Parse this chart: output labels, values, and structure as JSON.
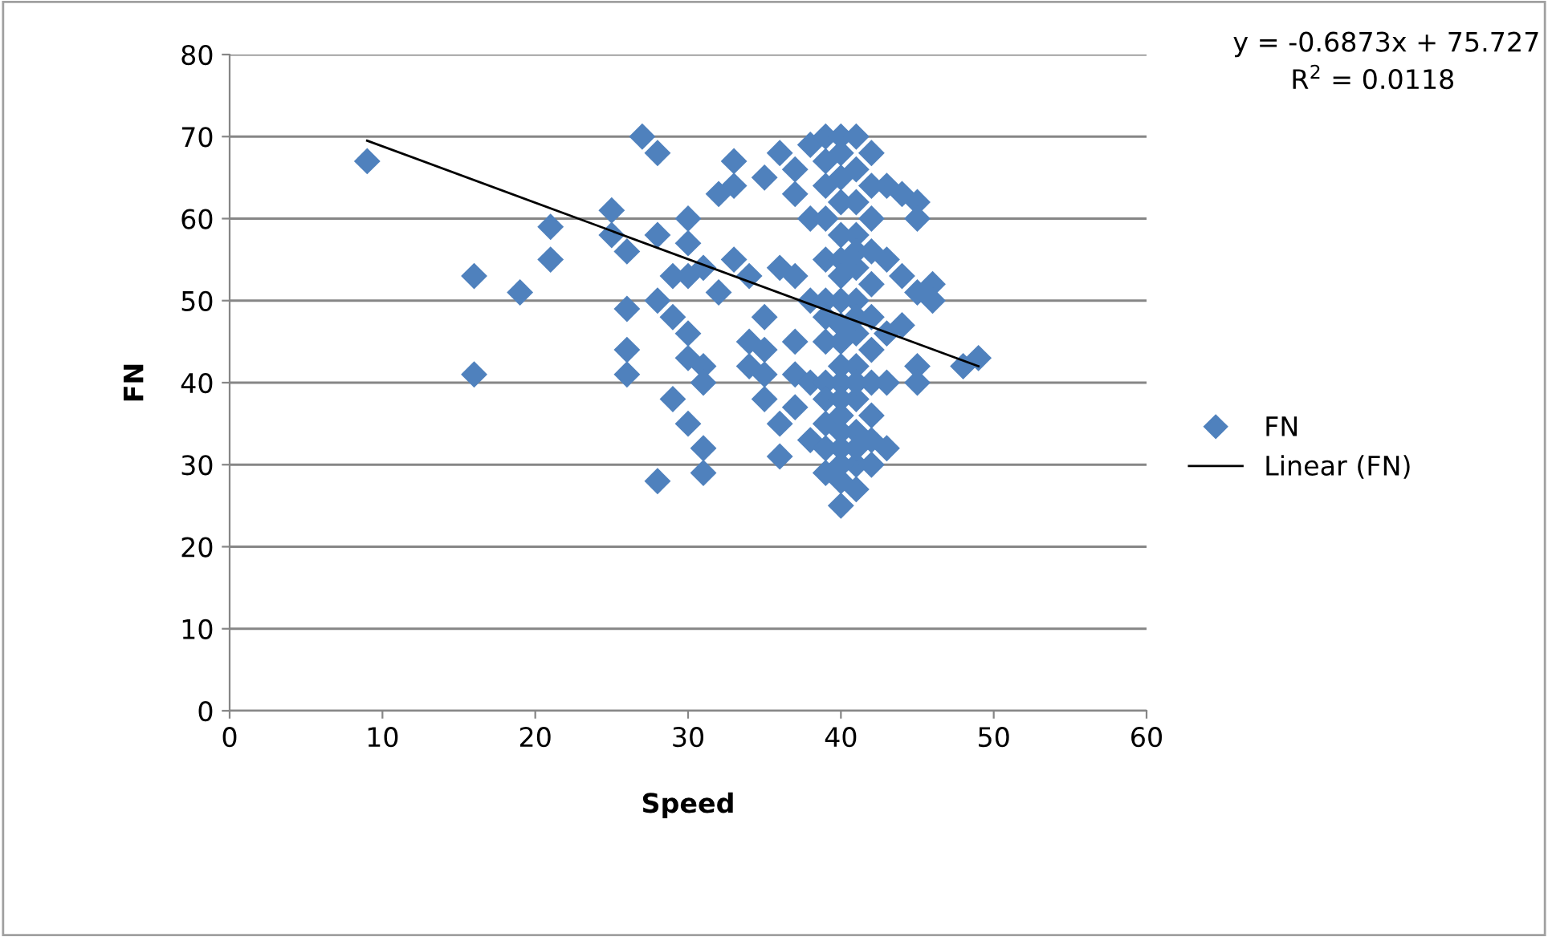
{
  "chart_data": {
    "type": "scatter",
    "xlabel": "Speed",
    "ylabel": "FN",
    "xlim": [
      0,
      60
    ],
    "ylim": [
      0,
      80
    ],
    "xticks": [
      0,
      10,
      20,
      30,
      40,
      50,
      60
    ],
    "yticks": [
      0,
      10,
      20,
      30,
      40,
      50,
      60,
      70,
      80
    ],
    "grid": "y",
    "legend": "right",
    "marker": "diamond",
    "annotations": [
      "y = -0.6873x + 75.727",
      "R$^{2}$ = 0.0118"
    ],
    "series": [
      {
        "name": "FN",
        "color": "#4f81bd",
        "x": [
          9,
          16,
          16,
          19,
          21,
          21,
          25,
          25,
          26,
          26,
          26,
          26,
          27,
          28,
          28,
          28,
          28,
          29,
          29,
          29,
          30,
          30,
          30,
          30,
          30,
          30,
          31,
          31,
          31,
          31,
          31,
          32,
          32,
          33,
          33,
          33,
          34,
          34,
          34,
          35,
          35,
          35,
          35,
          35,
          36,
          36,
          36,
          36,
          37,
          37,
          37,
          37,
          37,
          37,
          38,
          38,
          38,
          38,
          38,
          39,
          39,
          39,
          39,
          39,
          39,
          40,
          40,
          40,
          40,
          40,
          40,
          40,
          40,
          41,
          41,
          41,
          41,
          41,
          41,
          41,
          42,
          42,
          42,
          42,
          42,
          42,
          43,
          43,
          43,
          43,
          43,
          44,
          44,
          44,
          45,
          45,
          45,
          45,
          45,
          46,
          46,
          48,
          49,
          39,
          39,
          39,
          39,
          39,
          39,
          39,
          40,
          40,
          40,
          40,
          40,
          40,
          40,
          40,
          40,
          40,
          40,
          41,
          41,
          41,
          41,
          41,
          41,
          41,
          41,
          41,
          42,
          42,
          42,
          42,
          42
        ],
        "values": [
          67,
          53,
          41,
          51,
          59,
          55,
          61,
          58,
          56,
          49,
          44,
          41,
          70,
          68,
          58,
          50,
          28,
          53,
          48,
          38,
          60,
          57,
          53,
          46,
          43,
          35,
          54,
          42,
          40,
          32,
          29,
          63,
          51,
          67,
          64,
          55,
          53,
          45,
          42,
          65,
          48,
          44,
          41,
          38,
          68,
          54,
          35,
          31,
          66,
          63,
          53,
          45,
          41,
          37,
          69,
          60,
          50,
          40,
          33,
          70,
          64,
          55,
          45,
          35,
          29,
          70,
          65,
          58,
          50,
          42,
          34,
          28,
          25,
          70,
          62,
          54,
          46,
          38,
          30,
          27,
          68,
          60,
          52,
          44,
          36,
          33,
          64,
          55,
          46,
          40,
          32,
          63,
          53,
          47,
          62,
          60,
          51,
          42,
          40,
          52,
          50,
          42,
          43,
          67,
          60,
          50,
          48,
          40,
          38,
          32,
          68,
          62,
          55,
          53,
          47,
          45,
          40,
          38,
          36,
          32,
          30,
          66,
          58,
          56,
          50,
          48,
          42,
          40,
          34,
          32,
          64,
          56,
          48,
          40,
          30
        ]
      },
      {
        "name": "Linear (FN)",
        "type": "line",
        "color": "#000000",
        "marker": "none",
        "x": [
          9,
          49
        ],
        "values": [
          69.5,
          42.0
        ]
      }
    ]
  }
}
